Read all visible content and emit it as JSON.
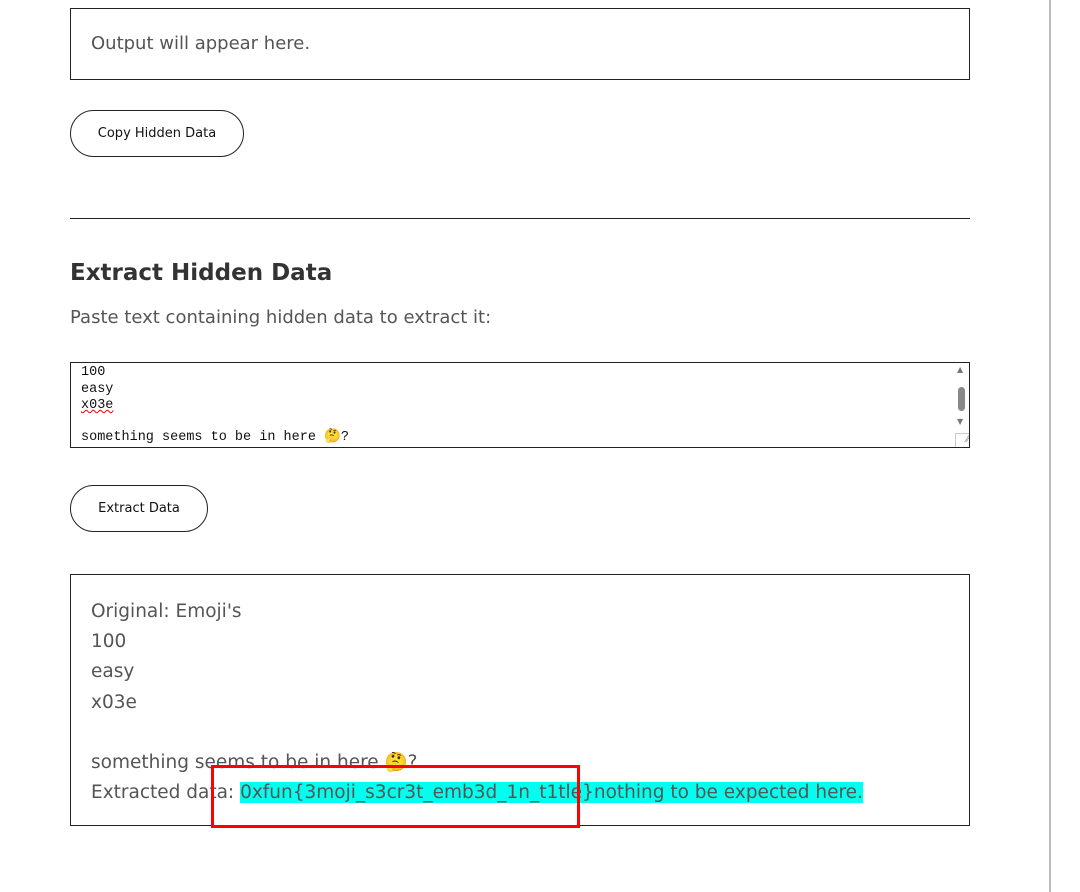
{
  "encode_output": {
    "placeholder_text": "Output will appear here."
  },
  "copy_button": {
    "label": "Copy Hidden Data"
  },
  "extract_section": {
    "title": "Extract Hidden Data",
    "description": "Paste text containing hidden data to extract it:",
    "textarea_lines": [
      "100",
      "easy",
      "x03e",
      "",
      "something seems to be in here 🤔?"
    ],
    "extract_button": {
      "label": "Extract Data"
    }
  },
  "result": {
    "original_label": "Original: Emoji's",
    "original_lines": [
      "100",
      "easy",
      "x03e",
      "",
      "something seems to be in here 🤔?"
    ],
    "extracted_label": "Extracted data: ",
    "extracted_value": "0xfun{3moji_s3cr3t_emb3d_1n_t1tle}nothing to be expected here.",
    "highlight_color": "#00ffee",
    "annotation_color": "#ff0000"
  }
}
